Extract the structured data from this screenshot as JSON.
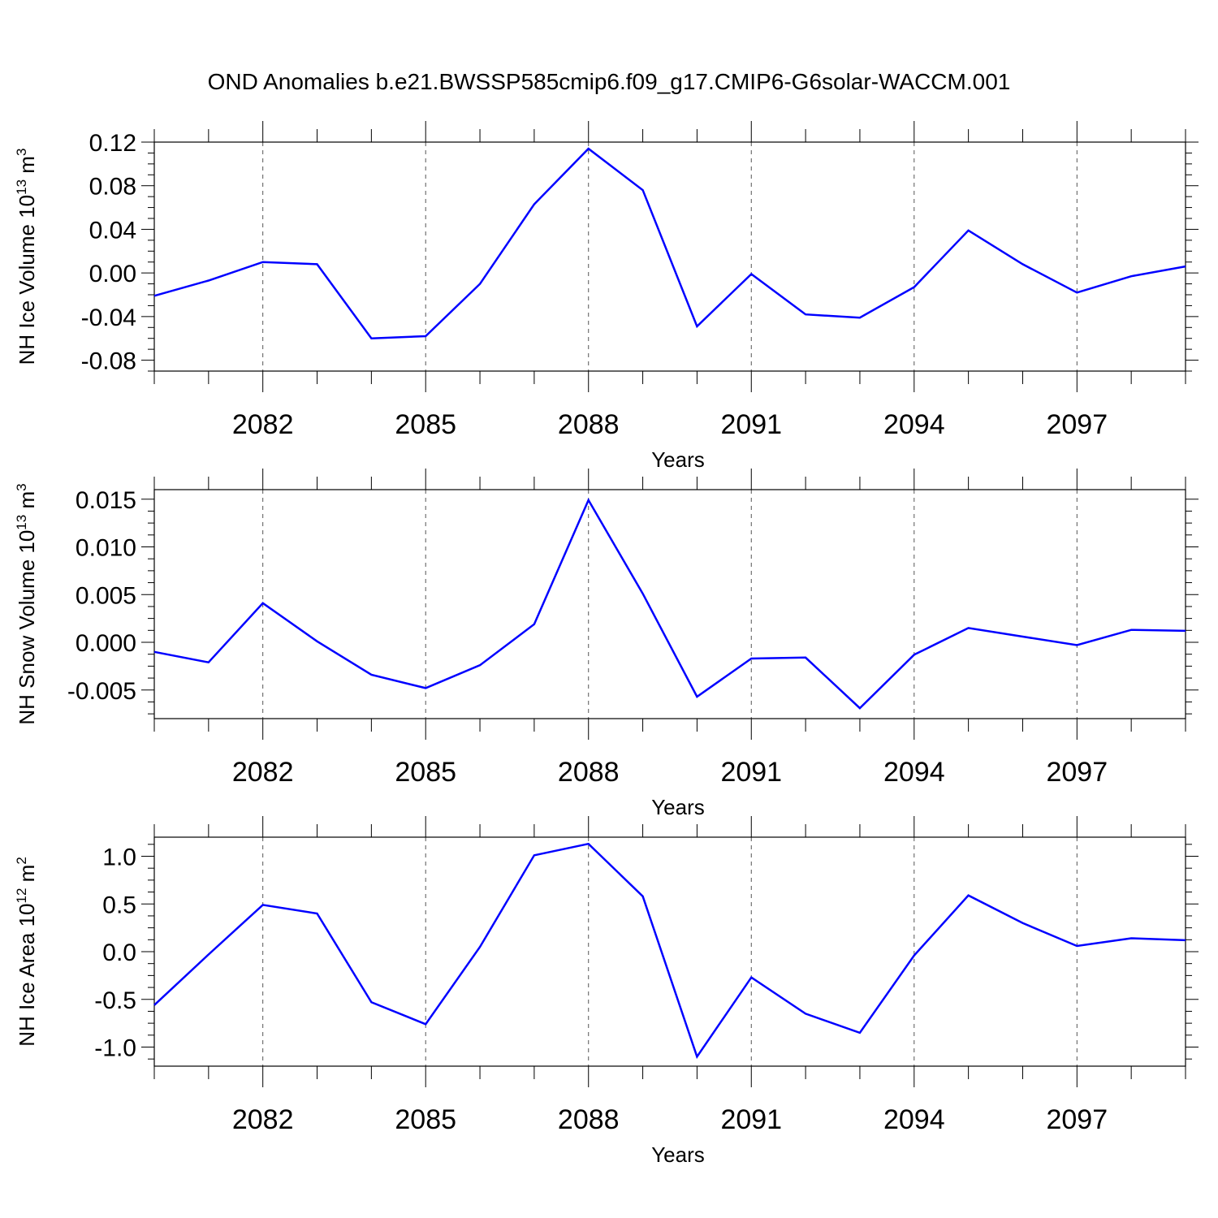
{
  "title": "OND Anomalies b.e21.BWSSP585cmip6.f09_g17.CMIP6-G6solar-WACCM.001",
  "line_color": "#0000ff",
  "chart_data": [
    {
      "type": "line",
      "ylabel_main": "NH Ice Volume 10",
      "ylabel_exp": "13",
      "ylabel_unit": "m",
      "ylabel_unit_exp": "3",
      "xlabel": "Years",
      "xlim": [
        2080,
        2099
      ],
      "ylim": [
        -0.09,
        0.12
      ],
      "xticks": [
        2082,
        2085,
        2088,
        2091,
        2094,
        2097
      ],
      "yticks": [
        -0.08,
        -0.04,
        0.0,
        0.04,
        0.08,
        0.12
      ],
      "ytick_labels": [
        "-0.08",
        "-0.04",
        "0.00",
        "0.04",
        "0.08",
        "0.12"
      ],
      "series": [
        {
          "name": "NH Ice Volume",
          "x": [
            2080,
            2081,
            2082,
            2083,
            2084,
            2085,
            2086,
            2087,
            2088,
            2089,
            2090,
            2091,
            2092,
            2093,
            2094,
            2095,
            2096,
            2097,
            2098,
            2099
          ],
          "values": [
            -0.021,
            -0.007,
            0.01,
            0.008,
            -0.06,
            -0.058,
            -0.01,
            0.063,
            0.114,
            0.076,
            -0.049,
            -0.001,
            -0.038,
            -0.041,
            -0.013,
            0.039,
            0.008,
            -0.018,
            -0.003,
            0.006
          ]
        }
      ]
    },
    {
      "type": "line",
      "ylabel_main": "NH Snow Volume 10",
      "ylabel_exp": "13",
      "ylabel_unit": "m",
      "ylabel_unit_exp": "3",
      "xlabel": "Years",
      "xlim": [
        2080,
        2099
      ],
      "ylim": [
        -0.008,
        0.016
      ],
      "xticks": [
        2082,
        2085,
        2088,
        2091,
        2094,
        2097
      ],
      "yticks": [
        -0.005,
        0.0,
        0.005,
        0.01,
        0.015
      ],
      "ytick_labels": [
        "-0.005",
        "0.000",
        "0.005",
        "0.010",
        "0.015"
      ],
      "series": [
        {
          "name": "NH Snow Volume",
          "x": [
            2080,
            2081,
            2082,
            2083,
            2084,
            2085,
            2086,
            2087,
            2088,
            2089,
            2090,
            2091,
            2092,
            2093,
            2094,
            2095,
            2096,
            2097,
            2098,
            2099
          ],
          "values": [
            -0.001,
            -0.0021,
            0.0041,
            0.0001,
            -0.0034,
            -0.0048,
            -0.0024,
            0.0019,
            0.0149,
            0.0051,
            -0.0057,
            -0.0017,
            -0.0016,
            -0.0069,
            -0.0013,
            0.0015,
            0.0006,
            -0.0003,
            0.0013,
            0.0012
          ]
        }
      ]
    },
    {
      "type": "line",
      "ylabel_main": "NH Ice Area 10",
      "ylabel_exp": "12",
      "ylabel_unit": "m",
      "ylabel_unit_exp": "2",
      "xlabel": "Years",
      "xlim": [
        2080,
        2099
      ],
      "ylim": [
        -1.2,
        1.2
      ],
      "xticks": [
        2082,
        2085,
        2088,
        2091,
        2094,
        2097
      ],
      "yticks": [
        -1.0,
        -0.5,
        0.0,
        0.5,
        1.0
      ],
      "ytick_labels": [
        "-1.0",
        "-0.5",
        "0.0",
        "0.5",
        "1.0"
      ],
      "series": [
        {
          "name": "NH Ice Area",
          "x": [
            2080,
            2081,
            2082,
            2083,
            2084,
            2085,
            2086,
            2087,
            2088,
            2089,
            2090,
            2091,
            2092,
            2093,
            2094,
            2095,
            2096,
            2097,
            2098,
            2099
          ],
          "values": [
            -0.56,
            -0.03,
            0.49,
            0.4,
            -0.53,
            -0.76,
            0.05,
            1.01,
            1.13,
            0.58,
            -1.1,
            -0.27,
            -0.65,
            -0.85,
            -0.04,
            0.59,
            0.3,
            0.06,
            0.14,
            0.12
          ]
        }
      ]
    }
  ]
}
